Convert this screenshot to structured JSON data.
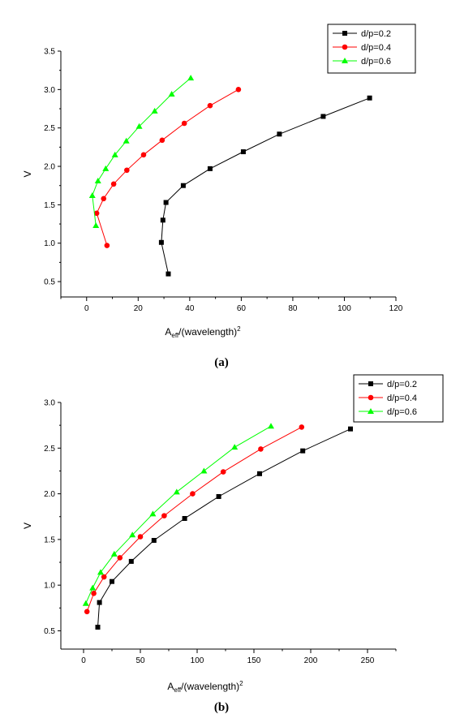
{
  "chart_data": [
    {
      "type": "line",
      "caption": "(a)",
      "xlabel": "A",
      "xlabel_sub": "eff",
      "xlabel_rest": "/(wavelength)",
      "xlabel_sup": "2",
      "ylabel": "V",
      "xlim": [
        -10,
        120
      ],
      "ylim": [
        0.3,
        3.5
      ],
      "xticks": [
        "0",
        "20",
        "40",
        "60",
        "80",
        "100",
        "120"
      ],
      "yticks": [
        "0.5",
        "1.0",
        "1.5",
        "2.0",
        "2.5",
        "3.0",
        "3.5"
      ],
      "legend_position": "top-right",
      "series": [
        {
          "name": "d/p=0.2",
          "color": "#000000",
          "marker": "square",
          "points": [
            [
              31.7,
              0.6
            ],
            [
              29.0,
              1.01
            ],
            [
              29.6,
              1.3
            ],
            [
              30.8,
              1.53
            ],
            [
              37.5,
              1.75
            ],
            [
              47.9,
              1.97
            ],
            [
              60.8,
              2.19
            ],
            [
              74.8,
              2.42
            ],
            [
              91.8,
              2.65
            ],
            [
              109.8,
              2.89
            ]
          ]
        },
        {
          "name": "d/p=0.4",
          "color": "#ff0000",
          "marker": "circle",
          "points": [
            [
              7.9,
              0.97
            ],
            [
              3.9,
              1.39
            ],
            [
              6.6,
              1.58
            ],
            [
              10.5,
              1.77
            ],
            [
              15.6,
              1.95
            ],
            [
              22.1,
              2.15
            ],
            [
              29.3,
              2.34
            ],
            [
              37.9,
              2.56
            ],
            [
              47.9,
              2.79
            ],
            [
              58.9,
              3.0
            ]
          ]
        },
        {
          "name": "d/p=0.6",
          "color": "#00ff00",
          "marker": "triangle",
          "points": [
            [
              3.6,
              1.23
            ],
            [
              2.2,
              1.62
            ],
            [
              4.4,
              1.81
            ],
            [
              7.4,
              1.97
            ],
            [
              11.0,
              2.15
            ],
            [
              15.4,
              2.33
            ],
            [
              20.4,
              2.52
            ],
            [
              26.4,
              2.72
            ],
            [
              33.0,
              2.94
            ],
            [
              40.4,
              3.15
            ]
          ]
        }
      ]
    },
    {
      "type": "line",
      "caption": "(b)",
      "xlabel": "A",
      "xlabel_sub": "eff",
      "xlabel_rest": "/(wavelength)",
      "xlabel_sup": "2",
      "ylabel": "V",
      "xlim": [
        -20,
        275
      ],
      "ylim": [
        0.3,
        3.0
      ],
      "xticks": [
        "0",
        "50",
        "100",
        "150",
        "200",
        "250"
      ],
      "yticks": [
        "0.5",
        "1.0",
        "1.5",
        "2.0",
        "2.5",
        "3.0"
      ],
      "legend_position": "top-right",
      "series": [
        {
          "name": "d/p=0.2",
          "color": "#000000",
          "marker": "square",
          "points": [
            [
              12.5,
              0.54
            ],
            [
              14.0,
              0.81
            ],
            [
              25.0,
              1.04
            ],
            [
              42.0,
              1.26
            ],
            [
              62.0,
              1.49
            ],
            [
              89.0,
              1.73
            ],
            [
              119.0,
              1.97
            ],
            [
              155.0,
              2.22
            ],
            [
              193.0,
              2.47
            ],
            [
              235.0,
              2.71
            ]
          ]
        },
        {
          "name": "d/p=0.4",
          "color": "#ff0000",
          "marker": "circle",
          "points": [
            [
              3.0,
              0.71
            ],
            [
              9.0,
              0.91
            ],
            [
              18.0,
              1.09
            ],
            [
              32.0,
              1.3
            ],
            [
              50.0,
              1.53
            ],
            [
              71.0,
              1.76
            ],
            [
              96.0,
              2.0
            ],
            [
              123.0,
              2.24
            ],
            [
              156.0,
              2.49
            ],
            [
              192.0,
              2.73
            ]
          ]
        },
        {
          "name": "d/p=0.6",
          "color": "#00ff00",
          "marker": "triangle",
          "points": [
            [
              2.0,
              0.8
            ],
            [
              8.0,
              0.97
            ],
            [
              15.0,
              1.14
            ],
            [
              27.0,
              1.34
            ],
            [
              43.0,
              1.55
            ],
            [
              61.0,
              1.78
            ],
            [
              82.0,
              2.02
            ],
            [
              106.0,
              2.25
            ],
            [
              133.0,
              2.51
            ],
            [
              165.0,
              2.74
            ]
          ]
        }
      ]
    }
  ]
}
